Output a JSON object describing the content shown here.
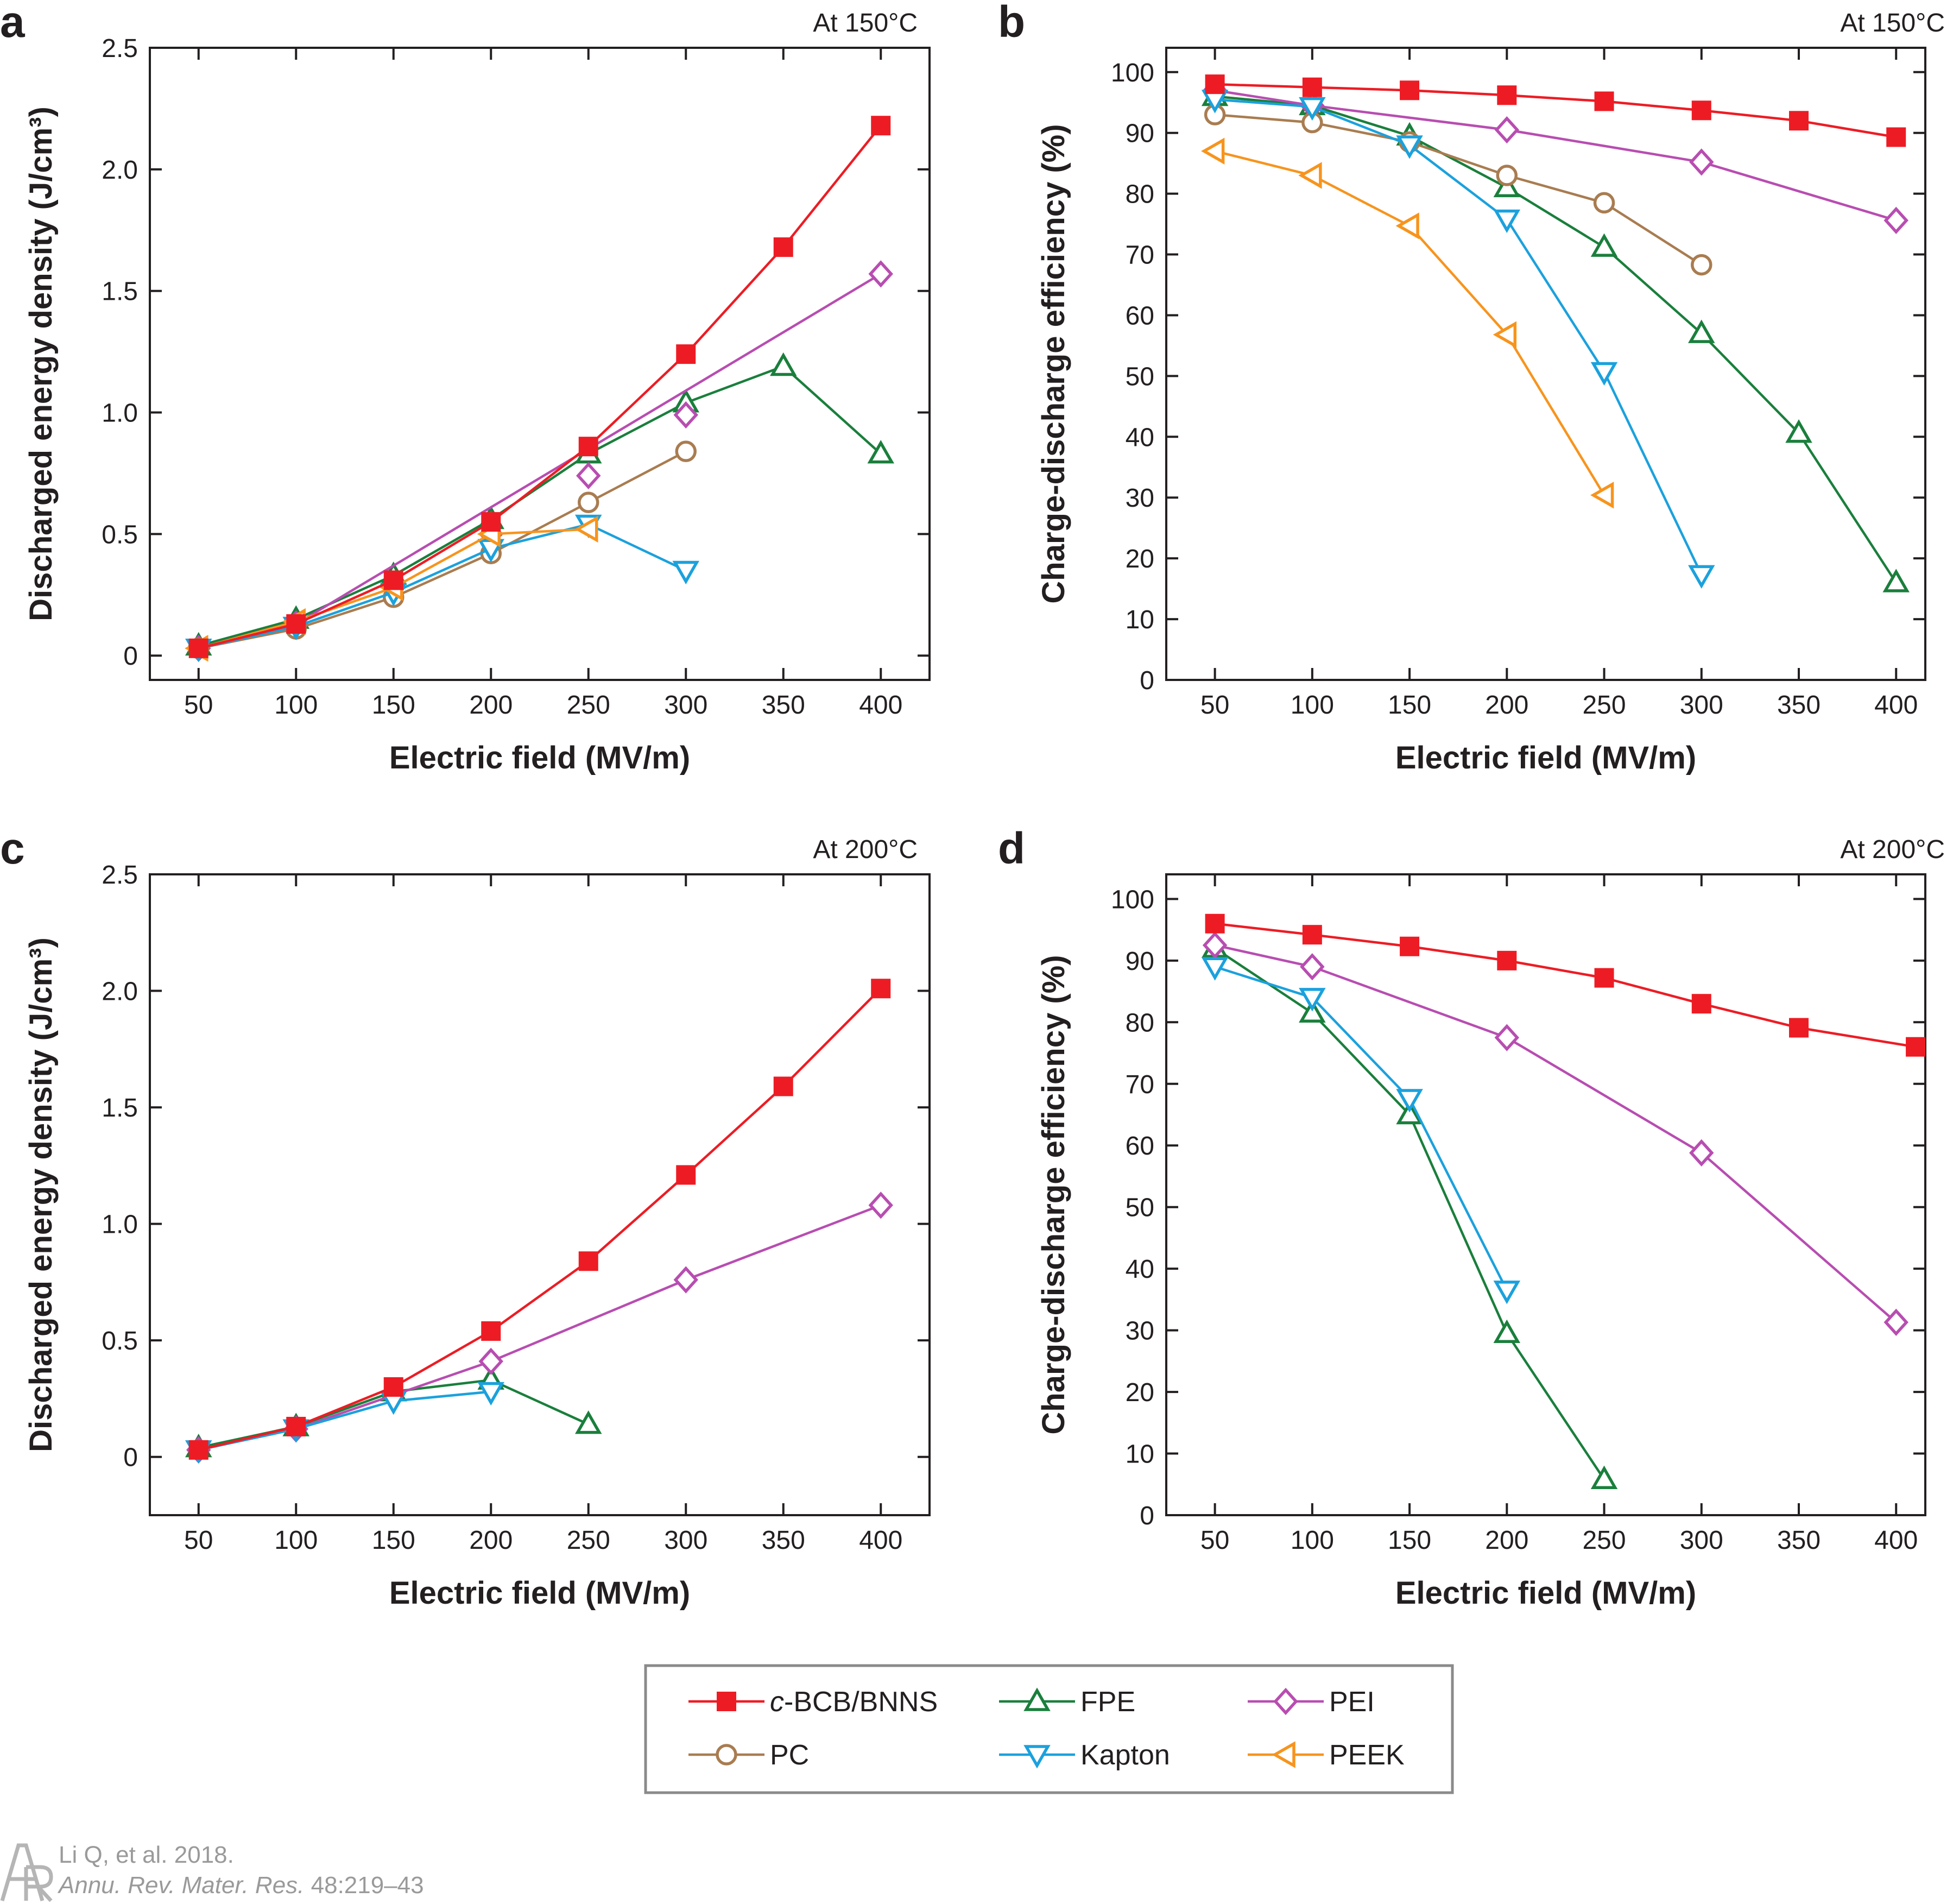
{
  "series_styles": {
    "c-BCB/BNNS": {
      "color": "#ed1c24",
      "marker": "square-filled"
    },
    "FPE": {
      "color": "#1a7f3c",
      "marker": "triangle-up-open"
    },
    "PEI": {
      "color": "#b84db1",
      "marker": "diamond-open"
    },
    "PC": {
      "color": "#a97c50",
      "marker": "circle-open"
    },
    "Kapton": {
      "color": "#1ba1dd",
      "marker": "triangle-down-open"
    },
    "PEEK": {
      "color": "#f7941d",
      "marker": "triangle-left-open"
    }
  },
  "chart_data": [
    {
      "panel": "a",
      "type": "line",
      "annotation": "At 150°C",
      "xlabel": "Electric field (MV/m)",
      "ylabel": "Discharged energy density (J/cm³)",
      "xlim": [
        25,
        425
      ],
      "ylim": [
        -0.1,
        2.5
      ],
      "xticks": [
        50,
        100,
        150,
        200,
        250,
        300,
        350,
        400
      ],
      "yticks": [
        0,
        0.5,
        1.0,
        1.5,
        2.0,
        2.5
      ],
      "ytick_labels": [
        "0",
        "0.5",
        "1.0",
        "1.5",
        "2.0",
        "2.5"
      ],
      "series": [
        {
          "name": "c-BCB/BNNS",
          "x": [
            50,
            100,
            150,
            200,
            250,
            300,
            350,
            400
          ],
          "y": [
            0.03,
            0.13,
            0.31,
            0.55,
            0.86,
            1.24,
            1.68,
            2.18
          ]
        },
        {
          "name": "FPE",
          "x": [
            50,
            100,
            150,
            200,
            250,
            300,
            350,
            400
          ],
          "y": [
            0.04,
            0.15,
            0.33,
            0.56,
            0.83,
            1.04,
            1.19,
            0.83
          ]
        },
        {
          "name": "PEI",
          "x": [
            50,
            100,
            400
          ],
          "y": [
            0.03,
            0.13,
            1.57
          ],
          "extra": {
            "x": [
              150,
              200,
              250,
              300
            ],
            "y": [
              0.28,
              0.5,
              0.74,
              0.99
            ]
          }
        },
        {
          "name": "PC",
          "x": [
            50,
            100,
            150,
            200,
            250,
            300
          ],
          "y": [
            0.03,
            0.11,
            0.24,
            0.42,
            0.63,
            0.84
          ]
        },
        {
          "name": "Kapton",
          "x": [
            50,
            100,
            150,
            200,
            250,
            300
          ],
          "y": [
            0.03,
            0.12,
            0.26,
            0.44,
            0.54,
            0.35
          ]
        },
        {
          "name": "PEEK",
          "x": [
            50,
            100,
            150,
            200,
            250
          ],
          "y": [
            0.03,
            0.14,
            0.28,
            0.5,
            0.52
          ]
        }
      ]
    },
    {
      "panel": "b",
      "type": "line",
      "annotation": "At 150°C",
      "xlabel": "Electric field (MV/m)",
      "ylabel": "Charge-discharge efficiency (%)",
      "xlim": [
        25,
        415
      ],
      "ylim": [
        0,
        104
      ],
      "xticks": [
        50,
        100,
        150,
        200,
        250,
        300,
        350,
        400
      ],
      "yticks": [
        0,
        10,
        20,
        30,
        40,
        50,
        60,
        70,
        80,
        90,
        100
      ],
      "ytick_labels": [
        "0",
        "10",
        "20",
        "30",
        "40",
        "50",
        "60",
        "70",
        "80",
        "90",
        "100"
      ],
      "series": [
        {
          "name": "c-BCB/BNNS",
          "x": [
            50,
            100,
            150,
            200,
            250,
            300,
            350,
            400
          ],
          "y": [
            98,
            97.5,
            97,
            96.2,
            95.2,
            93.7,
            92,
            89.3
          ]
        },
        {
          "name": "FPE",
          "x": [
            50,
            100,
            150,
            200,
            250,
            300,
            350,
            400
          ],
          "y": [
            96,
            94.5,
            89.5,
            81,
            71.2,
            57,
            40.6,
            16
          ]
        },
        {
          "name": "PEI",
          "x": [
            50,
            100,
            200,
            300,
            400
          ],
          "y": [
            97,
            94.5,
            90.5,
            85.2,
            75.6
          ]
        },
        {
          "name": "PC",
          "x": [
            50,
            100,
            150,
            200,
            250,
            300
          ],
          "y": [
            93,
            91.7,
            88.5,
            83,
            78.5,
            68.3
          ]
        },
        {
          "name": "Kapton",
          "x": [
            50,
            100,
            150,
            200,
            250,
            300
          ],
          "y": [
            95.5,
            94.3,
            88,
            75.8,
            50.7,
            17.3
          ]
        },
        {
          "name": "PEEK",
          "x": [
            50,
            100,
            150,
            200,
            250
          ],
          "y": [
            87,
            83,
            74.7,
            56.8,
            30.4
          ]
        }
      ]
    },
    {
      "panel": "c",
      "type": "line",
      "annotation": "At 200°C",
      "xlabel": "Electric field (MV/m)",
      "ylabel": "Discharged energy density (J/cm³)",
      "xlim": [
        25,
        425
      ],
      "ylim": [
        -0.25,
        2.5
      ],
      "xticks": [
        50,
        100,
        150,
        200,
        250,
        300,
        350,
        400
      ],
      "yticks": [
        0,
        0.5,
        1.0,
        1.5,
        2.0,
        2.5
      ],
      "ytick_labels": [
        "0",
        "0.5",
        "1.0",
        "1.5",
        "2.0",
        "2.5"
      ],
      "series": [
        {
          "name": "c-BCB/BNNS",
          "x": [
            50,
            100,
            150,
            200,
            250,
            300,
            350,
            400
          ],
          "y": [
            0.03,
            0.13,
            0.3,
            0.54,
            0.84,
            1.21,
            1.59,
            2.01
          ]
        },
        {
          "name": "FPE",
          "x": [
            50,
            100,
            150,
            200,
            250
          ],
          "y": [
            0.04,
            0.13,
            0.28,
            0.33,
            0.14
          ]
        },
        {
          "name": "PEI",
          "x": [
            50,
            100,
            200,
            300,
            400
          ],
          "y": [
            0.03,
            0.12,
            0.41,
            0.76,
            1.08
          ]
        },
        {
          "name": "Kapton",
          "x": [
            50,
            100,
            150,
            200
          ],
          "y": [
            0.03,
            0.12,
            0.24,
            0.28
          ]
        }
      ]
    },
    {
      "panel": "d",
      "type": "line",
      "annotation": "At 200°C",
      "xlabel": "Electric field (MV/m)",
      "ylabel": "Charge-discharge efficiency (%)",
      "xlim": [
        25,
        415
      ],
      "ylim": [
        0,
        104
      ],
      "xticks": [
        50,
        100,
        150,
        200,
        250,
        300,
        350,
        400
      ],
      "yticks": [
        0,
        10,
        20,
        30,
        40,
        50,
        60,
        70,
        80,
        90,
        100
      ],
      "ytick_labels": [
        "0",
        "10",
        "20",
        "30",
        "40",
        "50",
        "60",
        "70",
        "80",
        "90",
        "100"
      ],
      "series": [
        {
          "name": "c-BCB/BNNS",
          "x": [
            50,
            100,
            150,
            200,
            250,
            300,
            350,
            410
          ],
          "y": [
            96,
            94.2,
            92.3,
            90,
            87.2,
            83,
            79.1,
            76
          ]
        },
        {
          "name": "FPE",
          "x": [
            50,
            100,
            150,
            200,
            250
          ],
          "y": [
            92,
            81.5,
            65,
            29.5,
            5.8
          ]
        },
        {
          "name": "PEI",
          "x": [
            50,
            100,
            200,
            300,
            400
          ],
          "y": [
            92.5,
            89,
            77.5,
            58.8,
            31.3
          ]
        },
        {
          "name": "Kapton",
          "x": [
            50,
            100,
            150,
            200
          ],
          "y": [
            89,
            84,
            67.6,
            36.5
          ]
        }
      ]
    }
  ],
  "legend": {
    "items": [
      {
        "prefix": "c",
        "label": "-BCB/BNNS",
        "series": "c-BCB/BNNS"
      },
      {
        "label": "FPE",
        "series": "FPE"
      },
      {
        "label": "PEI",
        "series": "PEI"
      },
      {
        "label": "PC",
        "series": "PC"
      },
      {
        "label": "Kapton",
        "series": "Kapton"
      },
      {
        "label": "PEEK",
        "series": "PEEK"
      }
    ]
  },
  "citation": {
    "line1": "Li Q, et al. 2018.",
    "journal": "Annu. Rev. Mater. Res.",
    "pages": " 48:219–43"
  },
  "logo": {
    "label": "AR"
  }
}
